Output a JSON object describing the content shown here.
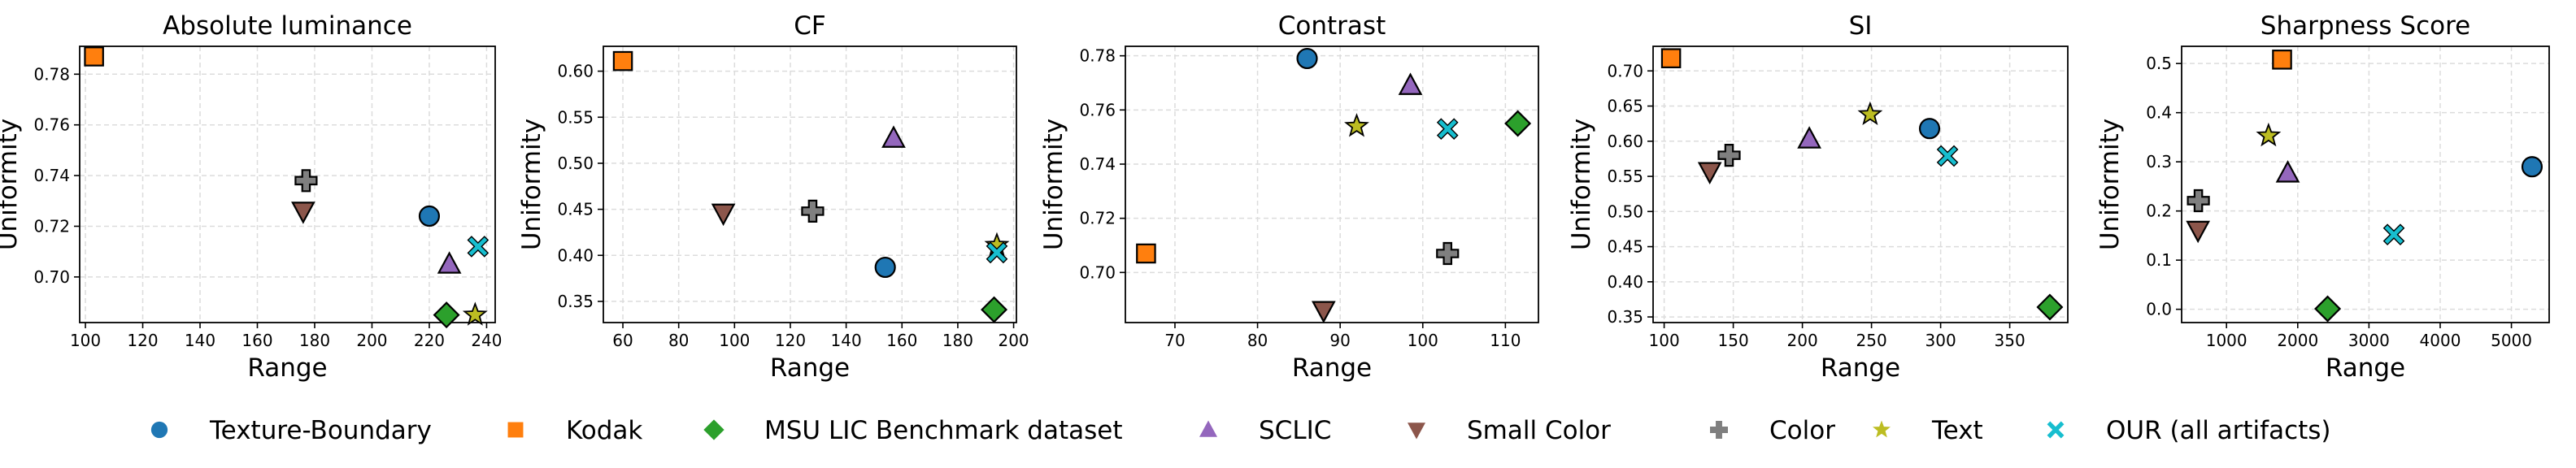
{
  "legend": {
    "placement": "bottom",
    "items": [
      {
        "name": "Texture-Boundary",
        "marker": "circle",
        "color": "#1f77b4"
      },
      {
        "name": "Kodak",
        "marker": "square",
        "color": "#ff7f0e"
      },
      {
        "name": "MSU LIC Benchmark dataset",
        "marker": "diamond",
        "color": "#2ca02c"
      },
      {
        "name": "SCLIC",
        "marker": "triangle-up",
        "color": "#9467bd"
      },
      {
        "name": "Small Color",
        "marker": "triangle-down",
        "color": "#8c564b"
      },
      {
        "name": "Color",
        "marker": "plus",
        "color": "#7f7f7f"
      },
      {
        "name": "Text",
        "marker": "star",
        "color": "#bcbd22"
      },
      {
        "name": "OUR (all artifacts)",
        "marker": "x",
        "color": "#17becf"
      }
    ]
  },
  "chart_data": [
    {
      "type": "scatter",
      "title": "Absolute luminance",
      "xlabel": "Range",
      "ylabel": "Uniformity",
      "grid": true,
      "xlim": [
        98,
        243
      ],
      "ylim": [
        0.682,
        0.791
      ],
      "xticks": [
        "100",
        "120",
        "140",
        "160",
        "180",
        "200",
        "220",
        "240"
      ],
      "yticks": [
        "0.70",
        "0.72",
        "0.74",
        "0.76",
        "0.78"
      ],
      "series": [
        {
          "name": "Texture-Boundary",
          "x": 220,
          "y": 0.724
        },
        {
          "name": "Kodak",
          "x": 103,
          "y": 0.787
        },
        {
          "name": "MSU LIC Benchmark dataset",
          "x": 226,
          "y": 0.685
        },
        {
          "name": "SCLIC",
          "x": 227,
          "y": 0.705
        },
        {
          "name": "Small Color",
          "x": 176,
          "y": 0.726
        },
        {
          "name": "Color",
          "x": 177,
          "y": 0.738
        },
        {
          "name": "Text",
          "x": 236,
          "y": 0.685
        },
        {
          "name": "OUR (all artifacts)",
          "x": 237,
          "y": 0.712
        }
      ]
    },
    {
      "type": "scatter",
      "title": "CF",
      "xlabel": "Range",
      "ylabel": "Uniformity",
      "grid": true,
      "xlim": [
        53,
        201
      ],
      "ylim": [
        0.327,
        0.627
      ],
      "xticks": [
        "60",
        "80",
        "100",
        "120",
        "140",
        "160",
        "180",
        "200"
      ],
      "yticks": [
        "0.35",
        "0.40",
        "0.45",
        "0.50",
        "0.55",
        "0.60"
      ],
      "series": [
        {
          "name": "Texture-Boundary",
          "x": 154,
          "y": 0.387
        },
        {
          "name": "Kodak",
          "x": 60,
          "y": 0.611
        },
        {
          "name": "MSU LIC Benchmark dataset",
          "x": 193,
          "y": 0.341
        },
        {
          "name": "SCLIC",
          "x": 157,
          "y": 0.527
        },
        {
          "name": "Small Color",
          "x": 96,
          "y": 0.446
        },
        {
          "name": "Color",
          "x": 128,
          "y": 0.448
        },
        {
          "name": "Text",
          "x": 194,
          "y": 0.411
        },
        {
          "name": "OUR (all artifacts)",
          "x": 194,
          "y": 0.403
        }
      ]
    },
    {
      "type": "scatter",
      "title": "Contrast",
      "xlabel": "Range",
      "ylabel": "Uniformity",
      "grid": true,
      "xlim": [
        64,
        114
      ],
      "ylim": [
        0.6815,
        0.7835
      ],
      "xticks": [
        "70",
        "80",
        "90",
        "100",
        "110"
      ],
      "yticks": [
        "0.70",
        "0.72",
        "0.74",
        "0.76",
        "0.78"
      ],
      "series": [
        {
          "name": "Texture-Boundary",
          "x": 86,
          "y": 0.779
        },
        {
          "name": "Kodak",
          "x": 66.5,
          "y": 0.707
        },
        {
          "name": "MSU LIC Benchmark dataset",
          "x": 111.5,
          "y": 0.755
        },
        {
          "name": "SCLIC",
          "x": 98.5,
          "y": 0.769
        },
        {
          "name": "Small Color",
          "x": 88,
          "y": 0.686
        },
        {
          "name": "Color",
          "x": 103,
          "y": 0.707
        },
        {
          "name": "Text",
          "x": 92,
          "y": 0.754
        },
        {
          "name": "OUR (all artifacts)",
          "x": 103,
          "y": 0.753
        }
      ]
    },
    {
      "type": "scatter",
      "title": "SI",
      "xlabel": "Range",
      "ylabel": "Uniformity",
      "grid": true,
      "xlim": [
        92,
        392
      ],
      "ylim": [
        0.342,
        0.735
      ],
      "xticks": [
        "100",
        "150",
        "200",
        "250",
        "300",
        "350"
      ],
      "yticks": [
        "0.35",
        "0.40",
        "0.45",
        "0.50",
        "0.55",
        "0.60",
        "0.65",
        "0.70"
      ],
      "series": [
        {
          "name": "Texture-Boundary",
          "x": 292,
          "y": 0.618
        },
        {
          "name": "Kodak",
          "x": 105,
          "y": 0.718
        },
        {
          "name": "MSU LIC Benchmark dataset",
          "x": 379,
          "y": 0.364
        },
        {
          "name": "SCLIC",
          "x": 205,
          "y": 0.603
        },
        {
          "name": "Small Color",
          "x": 133,
          "y": 0.557
        },
        {
          "name": "Color",
          "x": 147,
          "y": 0.58
        },
        {
          "name": "Text",
          "x": 249,
          "y": 0.638
        },
        {
          "name": "OUR (all artifacts)",
          "x": 305,
          "y": 0.579
        }
      ]
    },
    {
      "type": "scatter",
      "title": "Sharpness Score",
      "xlabel": "Range",
      "ylabel": "Uniformity",
      "grid": true,
      "xlim": [
        370,
        5530
      ],
      "ylim": [
        -0.027,
        0.535
      ],
      "xticks": [
        "1000",
        "2000",
        "3000",
        "4000",
        "5000"
      ],
      "yticks": [
        "0.0",
        "0.1",
        "0.2",
        "0.3",
        "0.4",
        "0.5"
      ],
      "series": [
        {
          "name": "Texture-Boundary",
          "x": 5290,
          "y": 0.29
        },
        {
          "name": "Kodak",
          "x": 1780,
          "y": 0.508
        },
        {
          "name": "MSU LIC Benchmark dataset",
          "x": 2420,
          "y": 0.001
        },
        {
          "name": "SCLIC",
          "x": 1860,
          "y": 0.277
        },
        {
          "name": "Small Color",
          "x": 600,
          "y": 0.161
        },
        {
          "name": "Color",
          "x": 605,
          "y": 0.221
        },
        {
          "name": "Text",
          "x": 1590,
          "y": 0.353
        },
        {
          "name": "OUR (all artifacts)",
          "x": 3350,
          "y": 0.152
        }
      ]
    }
  ]
}
